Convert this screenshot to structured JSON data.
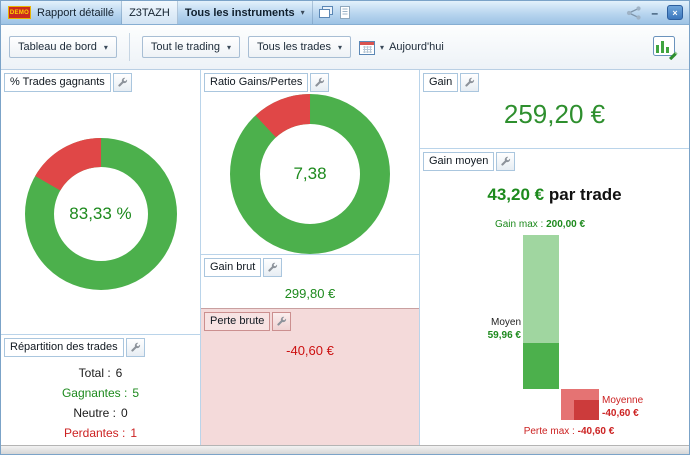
{
  "titlebar": {
    "demo_badge": "DEMO",
    "title": "Rapport détaillé",
    "account": "Z3TAZH",
    "instrument_dropdown": "Tous les instruments",
    "caret": "▾",
    "minimize_glyph": "–",
    "close_glyph": "×"
  },
  "toolbar": {
    "view_dropdown": "Tableau de bord",
    "period_dropdown": "Tout le trading",
    "trades_dropdown": "Tous les trades",
    "date_label": "Aujourd'hui",
    "caret": "▾"
  },
  "panels": {
    "win_rate": {
      "title": "% Trades gagnants",
      "center_value": "83,33 %"
    },
    "ratio": {
      "title": "Ratio Gains/Pertes",
      "center_value": "7,38"
    },
    "distribution": {
      "title": "Répartition des trades",
      "rows": [
        {
          "label": "Total :",
          "value": "6"
        },
        {
          "label": "Gagnantes :",
          "value": "5"
        },
        {
          "label": "Neutre :",
          "value": "0"
        },
        {
          "label": "Perdantes :",
          "value": "1"
        }
      ]
    },
    "gross_gain": {
      "title": "Gain brut",
      "value": "299,80 €"
    },
    "gross_loss": {
      "title": "Perte brute",
      "value": "-40,60 €"
    },
    "gain": {
      "title": "Gain",
      "value": "259,20 €"
    },
    "avg_gain": {
      "title": "Gain moyen",
      "value": "43,20 €",
      "suffix": "par trade",
      "gain_max_label": "Gain max :",
      "gain_max_value": "200,00 €",
      "avg_label": "Moyen",
      "avg_value": "59,96 €",
      "loss_avg_label": "Moyenne",
      "loss_avg_value": "-40,60 €",
      "loss_max_label": "Perte max :",
      "loss_max_value": "-40,60 €"
    }
  },
  "colors": {
    "gain_green": "#4cb04c",
    "loss_red": "#e04747",
    "text_green": "#1d8a1d",
    "text_red": "#cc2222"
  },
  "chart_data": [
    {
      "type": "pie",
      "variant": "donut",
      "title": "% Trades gagnants",
      "labels": [
        "Gagnants",
        "Perdants"
      ],
      "values": [
        83.33,
        16.67
      ],
      "colors": [
        "#4cb04c",
        "#e04747"
      ],
      "center_label": "83,33 %"
    },
    {
      "type": "pie",
      "variant": "donut",
      "title": "Ratio Gains/Pertes",
      "labels": [
        "Gains",
        "Pertes"
      ],
      "values": [
        88.07,
        11.93
      ],
      "colors": [
        "#4cb04c",
        "#e04747"
      ],
      "center_label": "7,38",
      "ratio": 7.38
    },
    {
      "type": "bar",
      "title": "Gain moyen (€ par trade)",
      "categories": [
        "Gain max",
        "Moyen",
        "Moyenne (perte)",
        "Perte max"
      ],
      "values": [
        200.0,
        59.96,
        -40.6,
        -40.6
      ],
      "colors": [
        "#a0d6a0",
        "#4cb04c",
        "#e57373",
        "#cc3b3b"
      ],
      "unit": "€",
      "avg_per_trade": 43.2
    }
  ]
}
